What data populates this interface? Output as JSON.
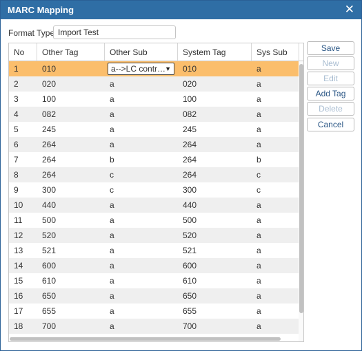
{
  "dialog": {
    "title": "MARC Mapping",
    "close_glyph": "✕"
  },
  "format": {
    "label": "Format Type",
    "value": "Import Test"
  },
  "grid": {
    "columns": [
      "No",
      "Other Tag",
      "Other Sub",
      "System Tag",
      "Sys Sub"
    ],
    "selected_row_index": 0,
    "selected_other_sub_dropdown": "a-->LC contr…",
    "dropdown_arrow": "▼",
    "rows": [
      {
        "no": "1",
        "other_tag": "010",
        "other_sub": "a",
        "system_tag": "010",
        "sys_sub": "a"
      },
      {
        "no": "2",
        "other_tag": "020",
        "other_sub": "a",
        "system_tag": "020",
        "sys_sub": "a"
      },
      {
        "no": "3",
        "other_tag": "100",
        "other_sub": "a",
        "system_tag": "100",
        "sys_sub": "a"
      },
      {
        "no": "4",
        "other_tag": "082",
        "other_sub": "a",
        "system_tag": "082",
        "sys_sub": "a"
      },
      {
        "no": "5",
        "other_tag": "245",
        "other_sub": "a",
        "system_tag": "245",
        "sys_sub": "a"
      },
      {
        "no": "6",
        "other_tag": "264",
        "other_sub": "a",
        "system_tag": "264",
        "sys_sub": "a"
      },
      {
        "no": "7",
        "other_tag": "264",
        "other_sub": "b",
        "system_tag": "264",
        "sys_sub": "b"
      },
      {
        "no": "8",
        "other_tag": "264",
        "other_sub": "c",
        "system_tag": "264",
        "sys_sub": "c"
      },
      {
        "no": "9",
        "other_tag": "300",
        "other_sub": "c",
        "system_tag": "300",
        "sys_sub": "c"
      },
      {
        "no": "10",
        "other_tag": "440",
        "other_sub": "a",
        "system_tag": "440",
        "sys_sub": "a"
      },
      {
        "no": "11",
        "other_tag": "500",
        "other_sub": "a",
        "system_tag": "500",
        "sys_sub": "a"
      },
      {
        "no": "12",
        "other_tag": "520",
        "other_sub": "a",
        "system_tag": "520",
        "sys_sub": "a"
      },
      {
        "no": "13",
        "other_tag": "521",
        "other_sub": "a",
        "system_tag": "521",
        "sys_sub": "a"
      },
      {
        "no": "14",
        "other_tag": "600",
        "other_sub": "a",
        "system_tag": "600",
        "sys_sub": "a"
      },
      {
        "no": "15",
        "other_tag": "610",
        "other_sub": "a",
        "system_tag": "610",
        "sys_sub": "a"
      },
      {
        "no": "16",
        "other_tag": "650",
        "other_sub": "a",
        "system_tag": "650",
        "sys_sub": "a"
      },
      {
        "no": "17",
        "other_tag": "655",
        "other_sub": "a",
        "system_tag": "655",
        "sys_sub": "a"
      },
      {
        "no": "18",
        "other_tag": "700",
        "other_sub": "a",
        "system_tag": "700",
        "sys_sub": "a"
      }
    ]
  },
  "buttons": [
    {
      "label": "Save",
      "name": "save-button",
      "enabled": true
    },
    {
      "label": "New",
      "name": "new-button",
      "enabled": false
    },
    {
      "label": "Edit",
      "name": "edit-button",
      "enabled": false
    },
    {
      "label": "Add Tag",
      "name": "add-tag-button",
      "enabled": true
    },
    {
      "label": "Delete",
      "name": "delete-button",
      "enabled": false
    },
    {
      "label": "Cancel",
      "name": "cancel-button",
      "enabled": true
    }
  ],
  "colors": {
    "title_bar": "#2f6ea5",
    "selected_row": "#fbbe6c",
    "alt_row": "#efefef",
    "button_text": "#2a5685",
    "button_text_disabled": "#a9bdd1"
  }
}
